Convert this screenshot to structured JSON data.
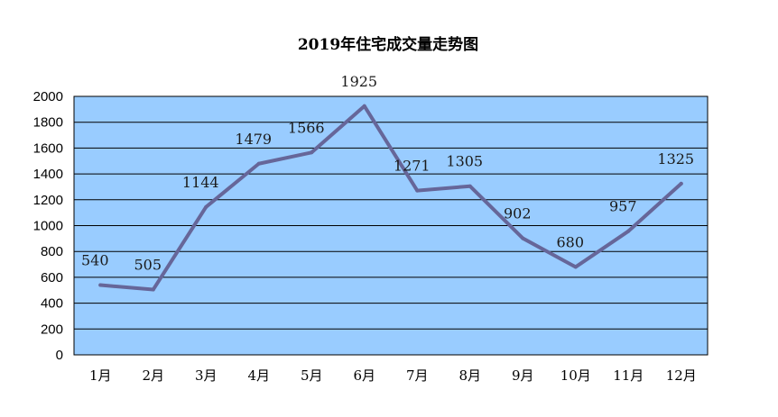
{
  "chart_data": {
    "type": "line",
    "title": "2019年住宅成交量走势图",
    "xlabel": "",
    "ylabel": "",
    "categories": [
      "1月",
      "2月",
      "3月",
      "4月",
      "5月",
      "6月",
      "7月",
      "8月",
      "9月",
      "10月",
      "11月",
      "12月"
    ],
    "series": [
      {
        "values": [
          540,
          505,
          1144,
          1479,
          1566,
          1925,
          1271,
          1305,
          902,
          680,
          957,
          1325
        ]
      }
    ],
    "ylim": [
      0,
      2000
    ],
    "yticks": [
      0,
      200,
      400,
      600,
      800,
      1000,
      1200,
      1400,
      1600,
      1800,
      2000
    ],
    "grid": true,
    "legend": "none",
    "data_labels": [
      "540",
      "505",
      "1144",
      "1479",
      "1566",
      "1925",
      "1271",
      "1305",
      "902",
      "680",
      "957",
      "1325"
    ],
    "colors": {
      "plot_background": "#99ccff",
      "line": "#666699",
      "gridline": "#000000"
    }
  }
}
